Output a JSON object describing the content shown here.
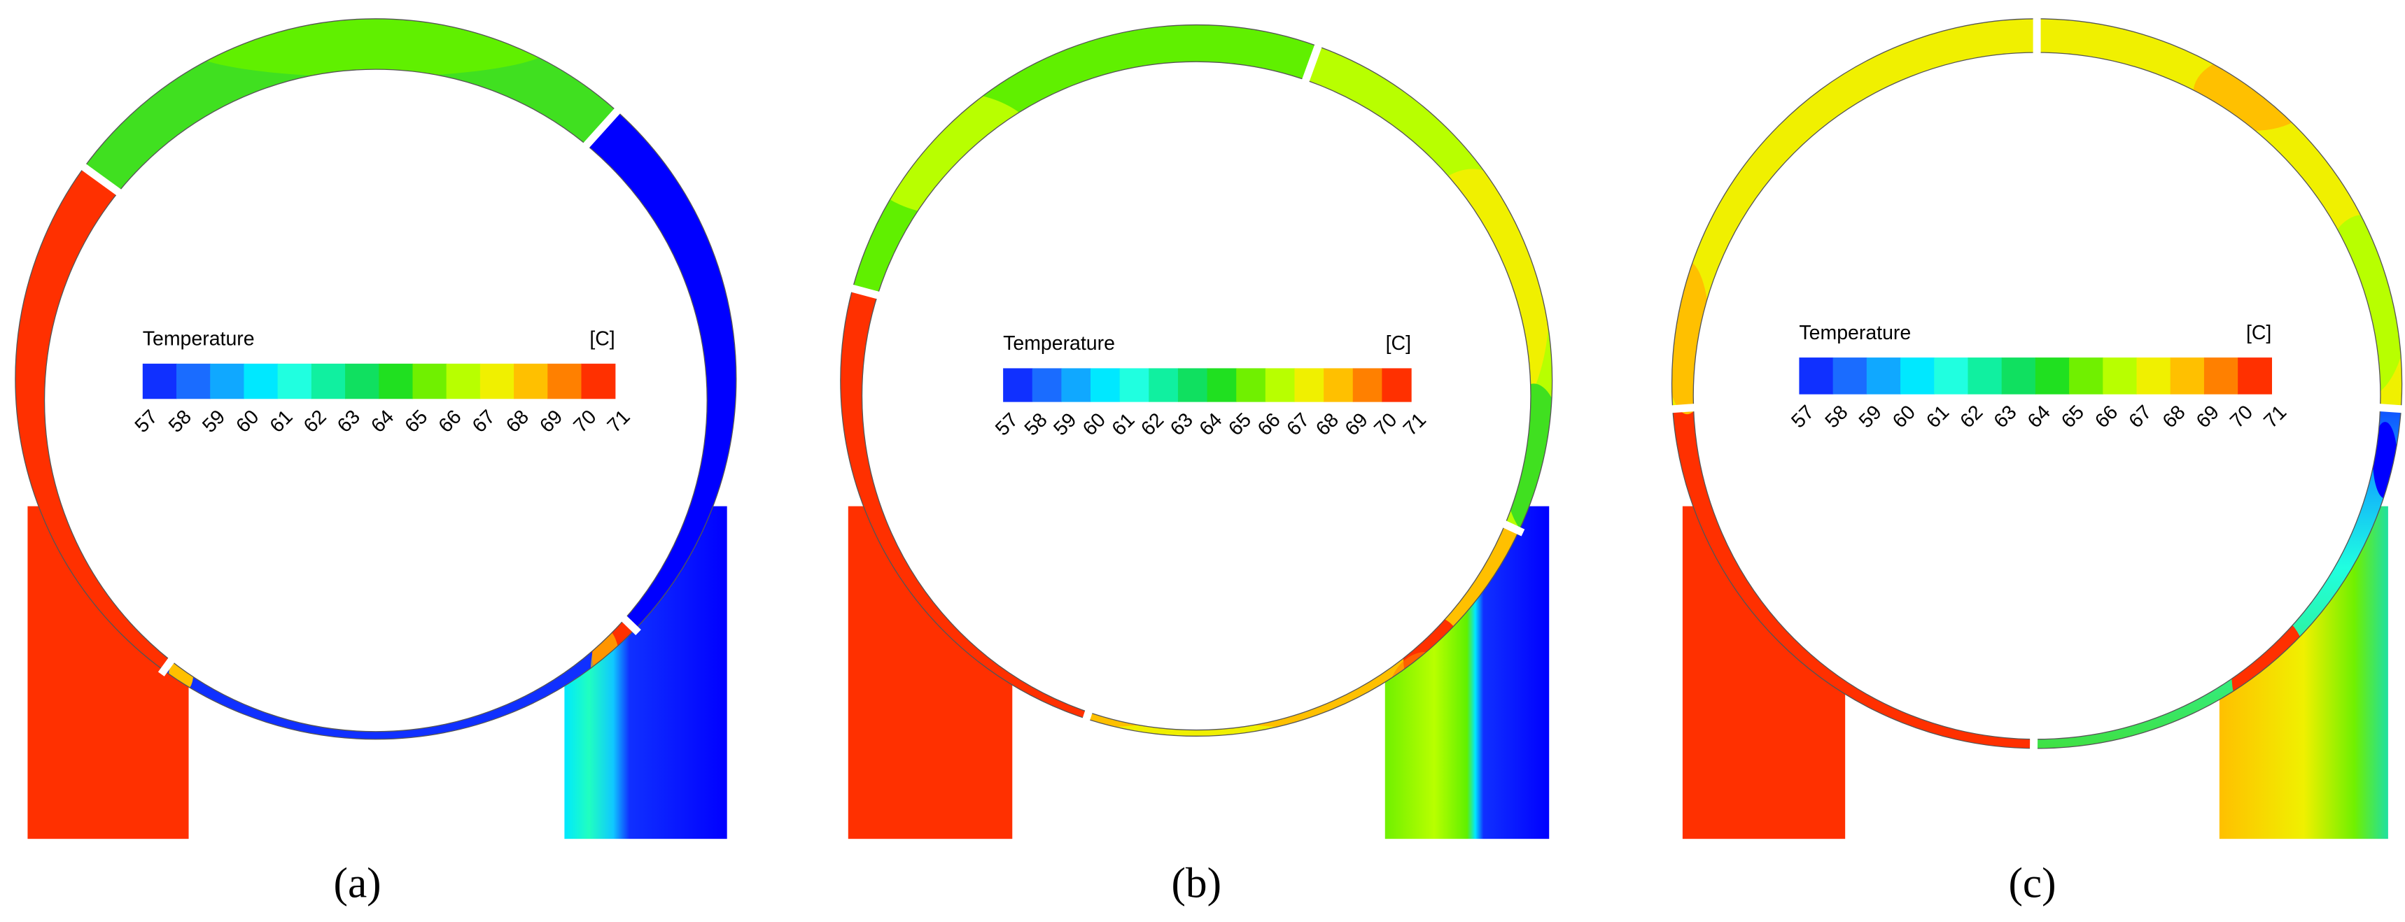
{
  "panels": [
    {
      "legend_title": "Temperature",
      "unit": "[C]",
      "ticks": [
        57,
        58,
        59,
        60,
        61,
        62,
        63,
        64,
        65,
        66,
        67,
        68,
        69,
        70,
        71
      ],
      "label": "(a)"
    },
    {
      "legend_title": "Temperature",
      "unit": "[C]",
      "ticks": [
        57,
        58,
        59,
        60,
        61,
        62,
        63,
        64,
        65,
        66,
        67,
        68,
        69,
        70,
        71
      ],
      "label": "(b)"
    },
    {
      "legend_title": "Temperature",
      "unit": "[C]",
      "ticks": [
        57,
        58,
        59,
        60,
        61,
        62,
        63,
        64,
        65,
        66,
        67,
        68,
        69,
        70,
        71
      ],
      "label": "(c)"
    }
  ]
}
